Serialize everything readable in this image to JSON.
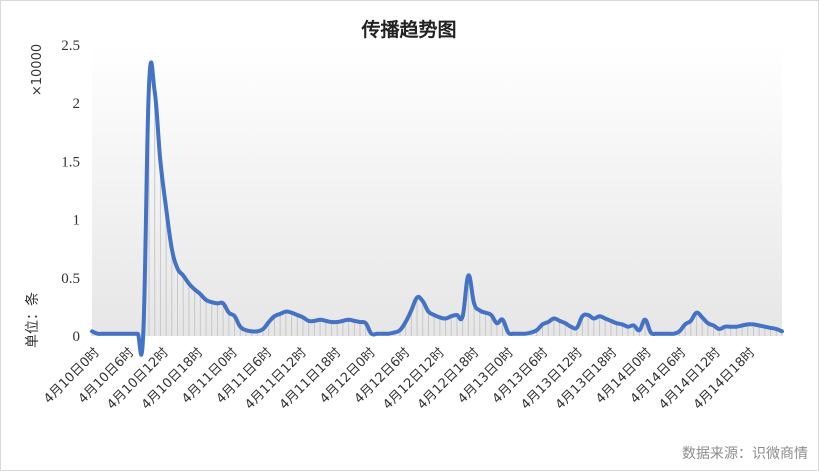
{
  "chart_data": {
    "type": "line",
    "title": "传播趋势图",
    "ylabel": "单位：条",
    "y_multiplier": "×10000",
    "source": "数据来源：识微商情",
    "ylim": [
      0,
      2.5
    ],
    "y_ticks": [
      "0",
      "0.5",
      "1",
      "1.5",
      "2",
      "2.5"
    ],
    "tick_labels": [
      "4月10日0时",
      "4月10日6时",
      "4月10日12时",
      "4月10日18时",
      "4月11日0时",
      "4月11日6时",
      "4月11日12时",
      "4月11日18时",
      "4月12日0时",
      "4月12日6时",
      "4月12日12时",
      "4月12日18时",
      "4月13日0时",
      "4月13日6时",
      "4月13日12时",
      "4月13日18时",
      "4月14日0时",
      "4月14日6时",
      "4月14日12时",
      "4月14日18时"
    ],
    "color": "#4472c4",
    "series": [
      {
        "values": [
          0.04,
          0.02,
          0.02,
          0.02,
          0.02,
          0.02,
          0.02,
          0.02,
          0.02,
          0.03,
          2.15,
          2.1,
          1.5,
          1.1,
          0.75,
          0.58,
          0.52,
          0.45,
          0.4,
          0.36,
          0.31,
          0.29,
          0.28,
          0.28,
          0.2,
          0.17,
          0.08,
          0.05,
          0.04,
          0.04,
          0.06,
          0.12,
          0.17,
          0.19,
          0.21,
          0.2,
          0.18,
          0.16,
          0.13,
          0.13,
          0.14,
          0.13,
          0.12,
          0.12,
          0.13,
          0.14,
          0.13,
          0.12,
          0.11,
          0.02,
          0.02,
          0.02,
          0.02,
          0.03,
          0.05,
          0.12,
          0.22,
          0.33,
          0.3,
          0.21,
          0.18,
          0.16,
          0.15,
          0.17,
          0.18,
          0.17,
          0.52,
          0.28,
          0.22,
          0.2,
          0.18,
          0.11,
          0.14,
          0.03,
          0.02,
          0.02,
          0.02,
          0.03,
          0.05,
          0.1,
          0.12,
          0.15,
          0.13,
          0.11,
          0.08,
          0.07,
          0.17,
          0.18,
          0.15,
          0.17,
          0.15,
          0.13,
          0.11,
          0.1,
          0.08,
          0.09,
          0.05,
          0.14,
          0.03,
          0.02,
          0.02,
          0.02,
          0.02,
          0.04,
          0.1,
          0.13,
          0.2,
          0.16,
          0.11,
          0.09,
          0.06,
          0.08,
          0.08,
          0.08,
          0.09,
          0.1,
          0.1,
          0.09,
          0.08,
          0.07,
          0.06,
          0.04
        ]
      }
    ]
  }
}
